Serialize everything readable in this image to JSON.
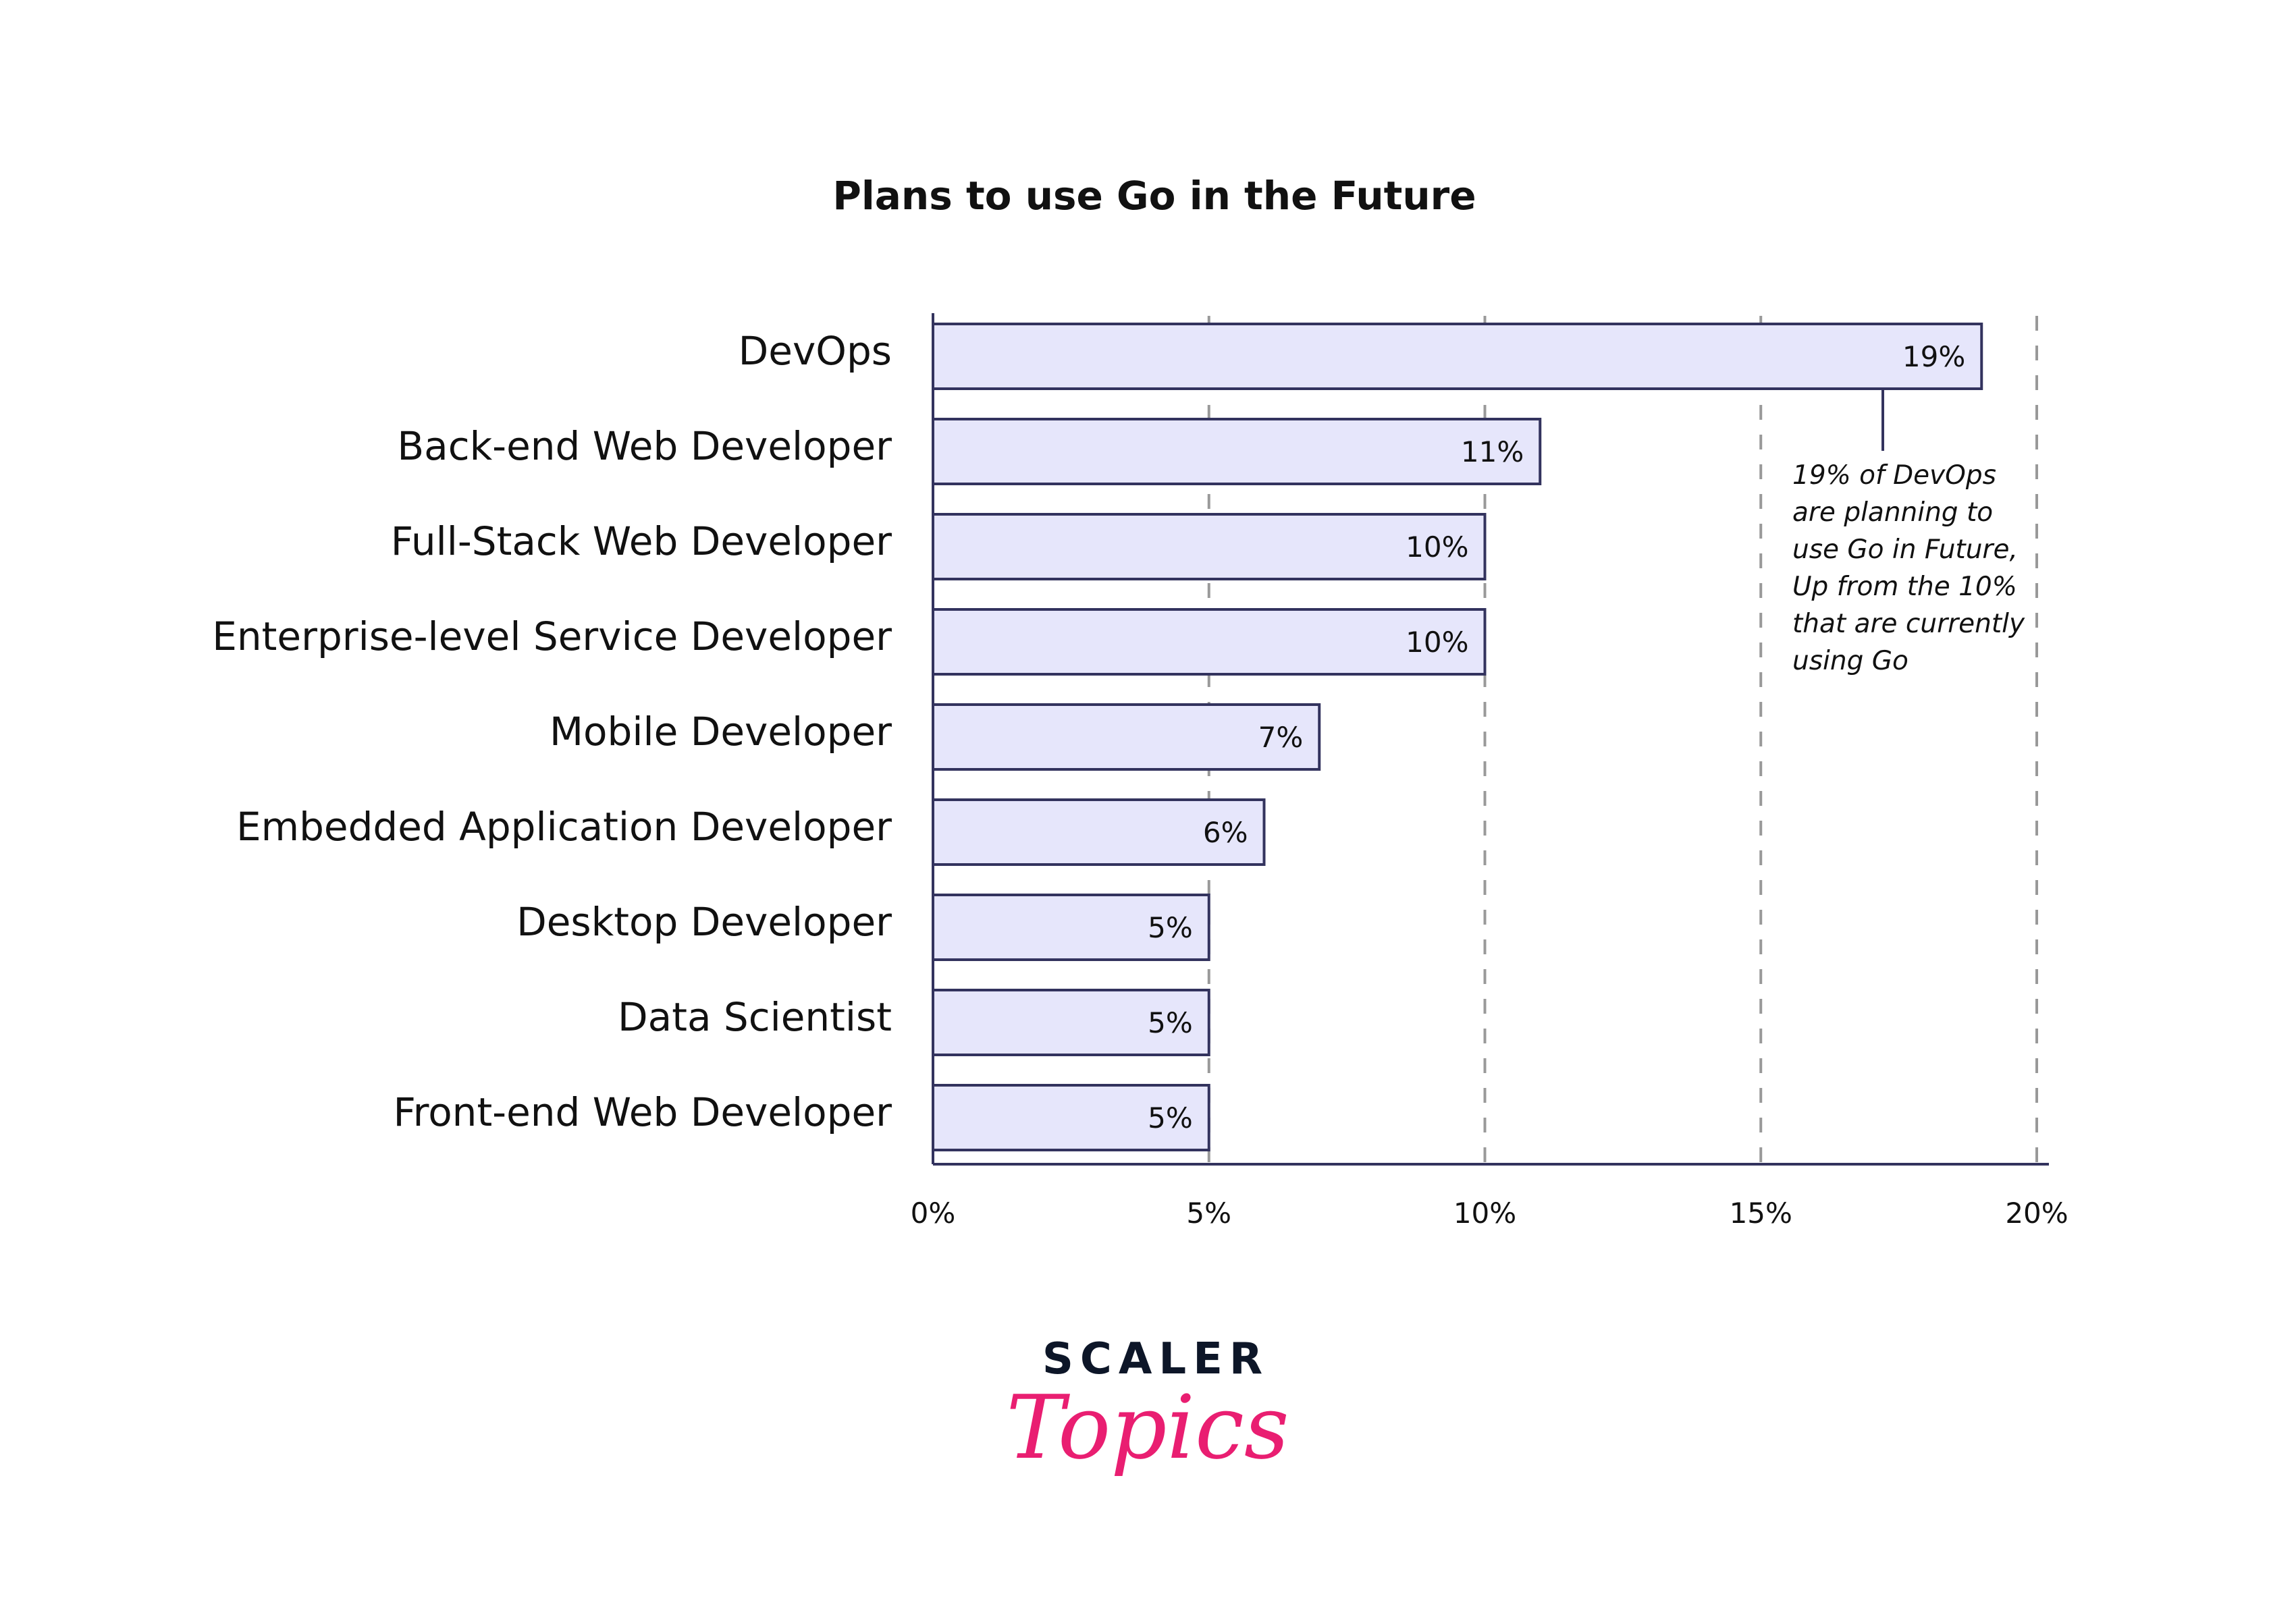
{
  "chart_data": {
    "type": "bar",
    "orientation": "horizontal",
    "title": "Plans to use Go in the Future",
    "categories": [
      "DevOps",
      "Back-end Web Developer",
      "Full-Stack Web Developer",
      "Enterprise-level Service Developer",
      "Mobile Developer",
      "Embedded Application Developer",
      "Desktop Developer",
      "Data Scientist",
      "Front-end Web Developer"
    ],
    "values": [
      19,
      11,
      10,
      10,
      7,
      6,
      5,
      5,
      5
    ],
    "value_labels": [
      "19%",
      "11%",
      "10%",
      "10%",
      "7%",
      "6%",
      "5%",
      "5%",
      "5%"
    ],
    "xlabel": "",
    "ylabel": "",
    "xlim": [
      0,
      20
    ],
    "xticks": [
      0,
      5,
      10,
      15,
      20
    ],
    "xtick_labels": [
      "0%",
      "5%",
      "10%",
      "15%",
      "20%"
    ],
    "grid": "vertical dashed",
    "annotation": {
      "target": "DevOps",
      "lines": [
        "19% of DevOps",
        "are planning to",
        "use Go in Future,",
        "Up from the 10%",
        "that are currently",
        "using Go"
      ]
    },
    "colors": {
      "bar_fill": "#e6e6fb",
      "bar_stroke": "#33335e",
      "grid": "#999999"
    }
  },
  "logo": {
    "top": "SCALER",
    "bottom": "Topics"
  }
}
